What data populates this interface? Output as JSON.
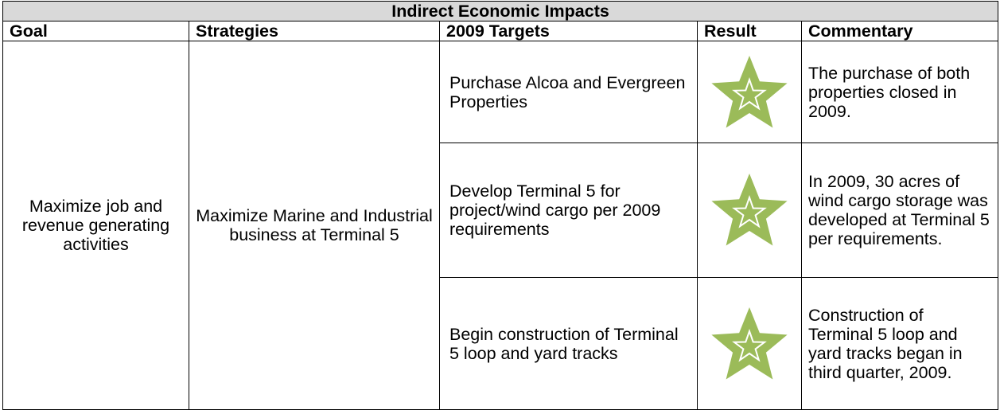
{
  "table": {
    "title": "Indirect Economic Impacts",
    "header": [
      "Goal",
      "Strategies",
      "2009 Targets",
      "Result",
      "Commentary"
    ],
    "goal": "Maximize job and revenue generating activities",
    "strategy": "Maximize Marine and Industrial business at Terminal 5",
    "rows": [
      {
        "target": "Purchase Alcoa and Evergreen Properties",
        "commentary": "The purchase of both properties closed in 2009."
      },
      {
        "target": "Develop Terminal 5 for project/wind cargo per 2009 requirements",
        "commentary": "In 2009, 30 acres of wind cargo storage was developed at Terminal 5 per requirements."
      },
      {
        "target": "Begin construction of Terminal 5 loop and yard tracks",
        "commentary": "Construction of Terminal 5 loop and yard tracks began in third quarter, 2009."
      }
    ]
  }
}
